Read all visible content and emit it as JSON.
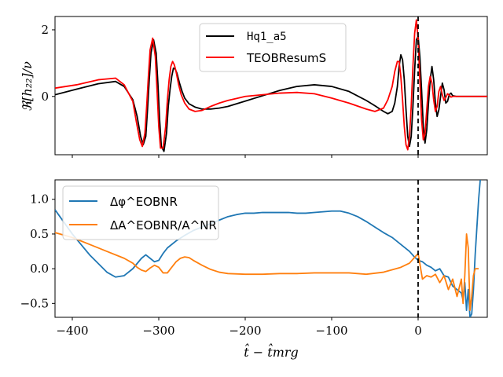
{
  "chart_data": [
    {
      "type": "line",
      "ylabel": "ℜ[h₂₂]/ν",
      "xlim": [
        -420,
        80
      ],
      "ylim": [
        -1.75,
        2.4
      ],
      "yticks": [
        0,
        2
      ],
      "ytick_labels": [
        "0",
        "2"
      ],
      "xticks": [
        -400,
        -300,
        -200,
        -100,
        0
      ],
      "legend_position": "top-center",
      "merger_line_x": 0,
      "series": [
        {
          "name": "Hq1_a5",
          "color": "#000000",
          "x": [
            -420,
            -395,
            -370,
            -350,
            -340,
            -330,
            -325,
            -321,
            -318,
            -315,
            -313,
            -311,
            -309,
            -306,
            -303,
            -301,
            -299,
            -297,
            -294,
            -291,
            -289,
            -287,
            -285,
            -283,
            -281,
            -279,
            -276,
            -273,
            -270,
            -265,
            -258,
            -250,
            -240,
            -230,
            -220,
            -210,
            -200,
            -180,
            -160,
            -140,
            -120,
            -100,
            -80,
            -60,
            -50,
            -40,
            -35,
            -30,
            -27,
            -24,
            -22,
            -20,
            -18,
            -16,
            -14,
            -12,
            -10,
            -8,
            -6,
            -4,
            -2,
            0,
            2,
            4,
            6,
            8,
            10,
            12,
            14,
            16,
            18,
            20,
            22,
            24,
            26,
            28,
            30,
            32,
            34,
            36,
            38,
            40,
            44,
            48,
            52,
            56,
            60,
            70,
            80
          ],
          "y": [
            0.05,
            0.22,
            0.38,
            0.45,
            0.3,
            -0.1,
            -0.6,
            -1.2,
            -1.45,
            -1.2,
            -0.4,
            0.5,
            1.3,
            1.7,
            1.3,
            0.4,
            -0.7,
            -1.5,
            -1.65,
            -1.1,
            -0.3,
            0.2,
            0.6,
            0.85,
            0.82,
            0.7,
            0.4,
            0.15,
            -0.05,
            -0.22,
            -0.32,
            -0.38,
            -0.38,
            -0.35,
            -0.3,
            -0.22,
            -0.14,
            0.02,
            0.18,
            0.3,
            0.35,
            0.3,
            0.15,
            -0.12,
            -0.28,
            -0.45,
            -0.52,
            -0.45,
            -0.2,
            0.3,
            0.9,
            1.25,
            1.1,
            0.5,
            -0.4,
            -1.2,
            -1.5,
            -1.2,
            -0.3,
            0.8,
            1.7,
            1.8,
            1.2,
            0.2,
            -0.9,
            -1.4,
            -1.0,
            -0.2,
            0.5,
            0.9,
            0.5,
            -0.2,
            -0.6,
            -0.4,
            0.0,
            0.4,
            0.2,
            -0.2,
            -0.15,
            0.05,
            0.1,
            0.02,
            0.0,
            0.0,
            0.0,
            0.0,
            0.0,
            0.0,
            0.0
          ]
        },
        {
          "name": "TEOBResumS",
          "color": "#ff0000",
          "x": [
            -420,
            -395,
            -370,
            -350,
            -340,
            -330,
            -326,
            -322,
            -319,
            -316,
            -314,
            -312,
            -310,
            -307,
            -304,
            -302,
            -300,
            -298,
            -295,
            -292,
            -290,
            -288,
            -286,
            -284,
            -282,
            -280,
            -277,
            -274,
            -270,
            -265,
            -258,
            -250,
            -240,
            -230,
            -220,
            -210,
            -200,
            -180,
            -160,
            -140,
            -120,
            -100,
            -80,
            -60,
            -50,
            -40,
            -35,
            -30,
            -27,
            -24,
            -22,
            -20,
            -18,
            -16,
            -14,
            -12,
            -10,
            -8,
            -6,
            -4,
            -2,
            0,
            2,
            4,
            6,
            8,
            10,
            12,
            14,
            16,
            18,
            20,
            22,
            24,
            26,
            28,
            30,
            32,
            34,
            36,
            38,
            40,
            44,
            48,
            52,
            56,
            60,
            70,
            80
          ],
          "y": [
            0.25,
            0.35,
            0.5,
            0.55,
            0.35,
            -0.15,
            -0.75,
            -1.3,
            -1.5,
            -1.1,
            -0.3,
            0.6,
            1.4,
            1.75,
            1.2,
            0.2,
            -0.9,
            -1.55,
            -1.55,
            -0.9,
            -0.1,
            0.5,
            0.9,
            1.05,
            0.95,
            0.75,
            0.35,
            0.05,
            -0.2,
            -0.38,
            -0.45,
            -0.42,
            -0.3,
            -0.2,
            -0.12,
            -0.06,
            0.0,
            0.05,
            0.1,
            0.12,
            0.08,
            -0.05,
            -0.2,
            -0.38,
            -0.45,
            -0.35,
            -0.1,
            0.3,
            0.75,
            1.05,
            1.05,
            0.6,
            -0.1,
            -0.9,
            -1.45,
            -1.6,
            -1.2,
            -0.3,
            0.9,
            1.9,
            2.3,
            1.7,
            0.5,
            -0.7,
            -1.3,
            -1.1,
            -0.4,
            0.3,
            0.6,
            0.4,
            -0.1,
            -0.45,
            -0.3,
            0.15,
            0.3,
            0.05,
            -0.12,
            -0.03,
            0.08,
            0.04,
            -0.02,
            0.0,
            0.0,
            0.0,
            0.0,
            0.0,
            0.0,
            0.0,
            0.0
          ]
        }
      ]
    },
    {
      "type": "line",
      "xlabel": "t̂ − t̂mrg",
      "xlim": [
        -420,
        80
      ],
      "ylim": [
        -0.7,
        1.28
      ],
      "yticks": [
        -0.5,
        0.0,
        0.5,
        1.0
      ],
      "ytick_labels": [
        "−0.5",
        "0.0",
        "0.5",
        "1.0"
      ],
      "xticks": [
        -400,
        -300,
        -200,
        -100,
        0
      ],
      "xtick_labels": [
        "−400",
        "−300",
        "−200",
        "−100",
        "0"
      ],
      "legend_position": "top-left",
      "merger_line_x": 0,
      "series": [
        {
          "name": "Δφ^EOBNR",
          "color": "#1f77b4",
          "x": [
            -420,
            -400,
            -380,
            -360,
            -350,
            -340,
            -330,
            -320,
            -315,
            -310,
            -305,
            -300,
            -295,
            -290,
            -280,
            -270,
            -260,
            -250,
            -240,
            -230,
            -220,
            -210,
            -200,
            -190,
            -180,
            -170,
            -160,
            -150,
            -140,
            -130,
            -120,
            -110,
            -100,
            -90,
            -80,
            -70,
            -60,
            -50,
            -40,
            -30,
            -20,
            -10,
            -5,
            0,
            5,
            10,
            15,
            20,
            25,
            30,
            35,
            40,
            45,
            50,
            52,
            54,
            56,
            58,
            60,
            62,
            64,
            66,
            68,
            70,
            72
          ],
          "y": [
            0.85,
            0.5,
            0.2,
            -0.05,
            -0.12,
            -0.1,
            0.0,
            0.15,
            0.2,
            0.15,
            0.1,
            0.12,
            0.22,
            0.3,
            0.4,
            0.48,
            0.55,
            0.6,
            0.65,
            0.7,
            0.75,
            0.78,
            0.8,
            0.8,
            0.81,
            0.81,
            0.81,
            0.81,
            0.8,
            0.8,
            0.81,
            0.82,
            0.83,
            0.83,
            0.8,
            0.75,
            0.68,
            0.6,
            0.52,
            0.45,
            0.35,
            0.25,
            0.18,
            0.12,
            0.1,
            0.05,
            0.02,
            -0.03,
            0.0,
            -0.1,
            -0.12,
            -0.25,
            -0.3,
            -0.35,
            -0.45,
            -0.2,
            -0.6,
            -0.3,
            -0.7,
            -0.65,
            -0.3,
            0.2,
            0.6,
            1.0,
            1.3
          ]
        },
        {
          "name": "ΔA^EOBNR/A^NR",
          "color": "#ff7f0e",
          "x": [
            -420,
            -400,
            -380,
            -360,
            -340,
            -330,
            -325,
            -320,
            -315,
            -310,
            -305,
            -300,
            -295,
            -290,
            -285,
            -280,
            -275,
            -270,
            -265,
            -260,
            -250,
            -240,
            -230,
            -220,
            -200,
            -180,
            -160,
            -140,
            -120,
            -100,
            -80,
            -60,
            -40,
            -20,
            -10,
            -5,
            0,
            5,
            10,
            15,
            20,
            25,
            30,
            35,
            40,
            45,
            50,
            52,
            54,
            56,
            58,
            60,
            62,
            64,
            66,
            68,
            70
          ],
          "y": [
            0.52,
            0.45,
            0.35,
            0.25,
            0.15,
            0.08,
            0.02,
            -0.02,
            -0.04,
            0.01,
            0.05,
            0.02,
            -0.06,
            -0.06,
            0.02,
            0.1,
            0.15,
            0.17,
            0.16,
            0.12,
            0.05,
            -0.01,
            -0.05,
            -0.07,
            -0.08,
            -0.08,
            -0.07,
            -0.07,
            -0.06,
            -0.06,
            -0.06,
            -0.08,
            -0.05,
            0.02,
            0.08,
            0.15,
            0.22,
            -0.15,
            -0.1,
            -0.12,
            -0.08,
            -0.2,
            -0.1,
            -0.3,
            -0.15,
            -0.4,
            -0.15,
            -0.5,
            -0.1,
            0.5,
            0.3,
            -0.6,
            -0.4,
            -0.1,
            0.0,
            0.0,
            0.0
          ]
        }
      ]
    }
  ]
}
